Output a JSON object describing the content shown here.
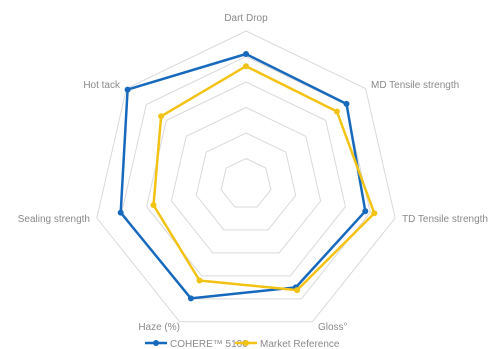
{
  "chart_data": {
    "type": "radar",
    "axes": [
      "Dart Drop",
      "MD Tensile strength",
      "TD Tensile strength",
      "Gloss°",
      "Haze (%)",
      "Sealing strength",
      "Hot tack"
    ],
    "scale": {
      "min": 0,
      "max": 1,
      "rings": 6
    },
    "series": [
      {
        "name": "COHERE™ 5100",
        "color": "#1769bd",
        "values": [
          0.85,
          0.84,
          0.8,
          0.75,
          0.83,
          0.84,
          0.99
        ]
      },
      {
        "name": "Market Reference",
        "color": "#f2c314",
        "values": [
          0.77,
          0.76,
          0.86,
          0.77,
          0.7,
          0.62,
          0.71
        ]
      }
    ],
    "grid_color": "#d9d9d9",
    "legend_position": "bottom",
    "grid": true
  }
}
